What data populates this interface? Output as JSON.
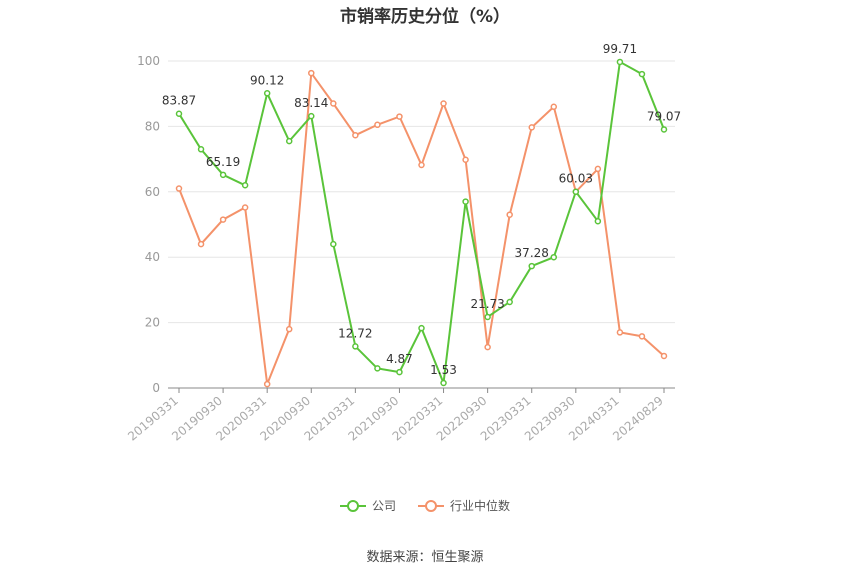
{
  "title": "市销率历史分位（%）",
  "source": "数据来源：恒生聚源",
  "chart_data": {
    "type": "line",
    "title": "市销率历史分位（%）",
    "ylim": [
      0,
      100
    ],
    "yticks": [
      0,
      20,
      40,
      60,
      80,
      100
    ],
    "grid": true,
    "legend_position": "bottom",
    "x": [
      "20190331",
      "20190630",
      "20190930",
      "20191231",
      "20200331",
      "20200630",
      "20200930",
      "20201231",
      "20210331",
      "20210630",
      "20210930",
      "20211231",
      "20220331",
      "20220630",
      "20220930",
      "20221231",
      "20230331",
      "20230630",
      "20230930",
      "20231231",
      "20240331",
      "20240630",
      "20240829"
    ],
    "x_tick_labels": [
      "20190331",
      "20190930",
      "20200331",
      "20200930",
      "20210331",
      "20210930",
      "20220331",
      "20220930",
      "20230331",
      "20230930",
      "20240331",
      "20240829"
    ],
    "series": [
      {
        "name": "公司",
        "color": "#5ac43a",
        "values": [
          83.87,
          73,
          65.19,
          62,
          90.12,
          75.5,
          83.14,
          44,
          12.72,
          6,
          4.87,
          18.3,
          1.53,
          57,
          21.73,
          26.3,
          37.28,
          40,
          60.03,
          51,
          99.71,
          96,
          79.07
        ],
        "labels": {
          "0": "83.87",
          "2": "65.19",
          "4": "90.12",
          "6": "83.14",
          "8": "12.72",
          "10": "4.87",
          "12": "1.53",
          "14": "21.73",
          "16": "37.28",
          "18": "60.03",
          "20": "99.71",
          "22": "79.07"
        }
      },
      {
        "name": "行业中位数",
        "color": "#f4926a",
        "values": [
          61,
          44,
          51.5,
          55.2,
          1.2,
          18,
          96.3,
          87,
          77.3,
          80.5,
          83,
          68.2,
          87,
          69.8,
          12.5,
          53,
          79.7,
          86,
          60,
          67,
          17,
          15.8,
          9.8
        ]
      }
    ]
  }
}
